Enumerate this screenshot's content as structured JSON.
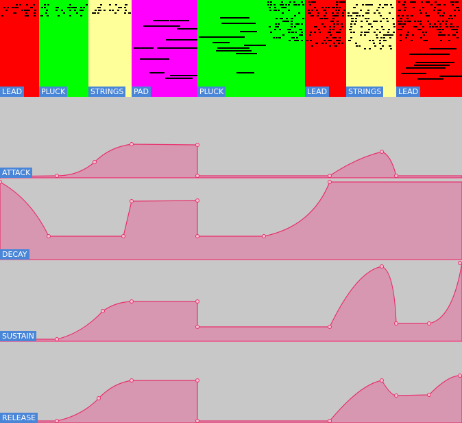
{
  "clips": [
    {
      "label": "LEAD"
    },
    {
      "label": "PLUCK"
    },
    {
      "label": "STRINGS"
    },
    {
      "label": "PAD"
    },
    {
      "label": "PLUCK"
    },
    {
      "label": "LEAD"
    },
    {
      "label": "STRINGS"
    },
    {
      "label": "LEAD"
    }
  ],
  "lanes": [
    {
      "label": "ATTACK"
    },
    {
      "label": "DECAY"
    },
    {
      "label": "SUSTAIN"
    },
    {
      "label": "RELEASE"
    }
  ]
}
